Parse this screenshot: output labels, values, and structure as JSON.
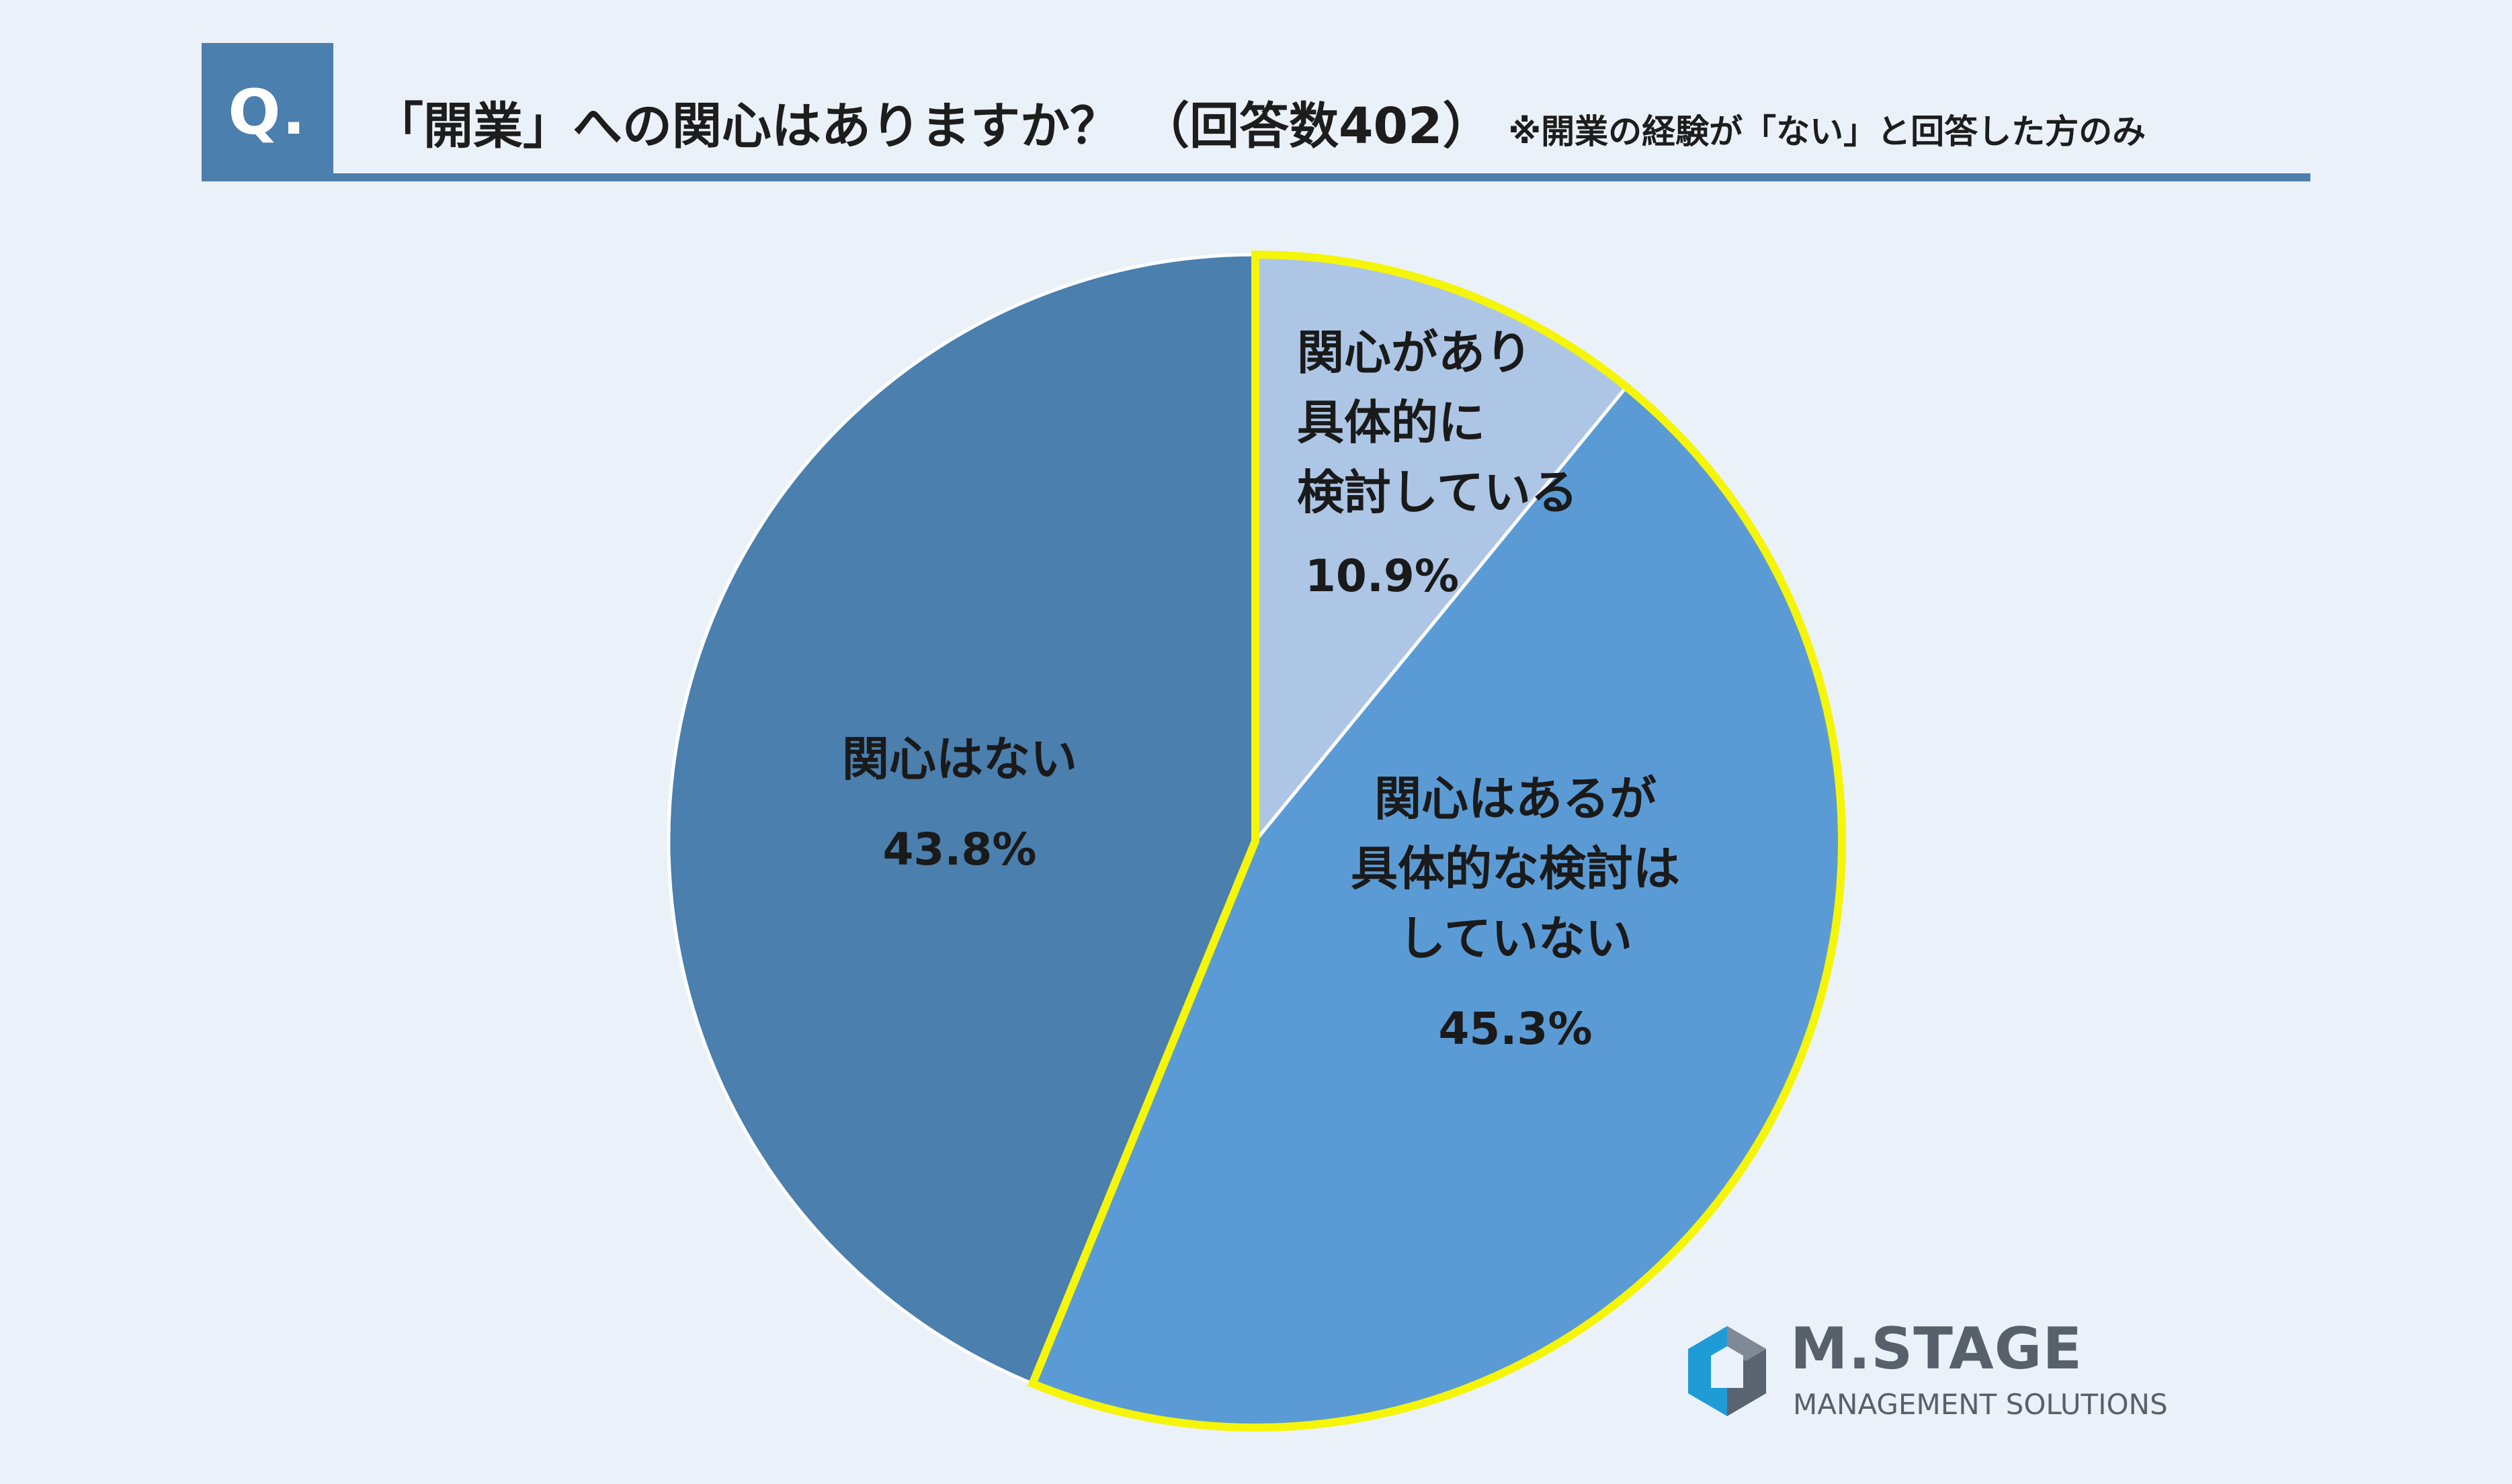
{
  "header": {
    "badge": "Q.",
    "title": "「開業」への関心はありますか？",
    "count": "（回答数402）",
    "note": "※開業の経験が「ない」と回答した方のみ"
  },
  "colors": {
    "background": "#ebf1f9",
    "accent": "#4a7fae",
    "highlight_outline": "#f5f50a",
    "slice_separator": "#ffffff"
  },
  "chart_data": {
    "type": "pie",
    "title": "「開業」への関心はありますか？",
    "start": "12 o'clock, clockwise",
    "slices": [
      {
        "label_lines": [
          "関心があり",
          "具体的に",
          "検討している"
        ],
        "value": 10.9,
        "value_label": "10.9%",
        "color": "#adc6e6",
        "highlighted": true
      },
      {
        "label_lines": [
          "関心はあるが",
          "具体的な検討は",
          "していない"
        ],
        "value": 45.3,
        "value_label": "45.3%",
        "color": "#5b9bd5",
        "highlighted": true
      },
      {
        "label_lines": [
          "関心はない"
        ],
        "value": 43.8,
        "value_label": "43.8%",
        "color": "#4a7fae",
        "highlighted": false
      }
    ]
  },
  "logo": {
    "icon": "m-stage-hexagon-icon",
    "name": "M.STAGE",
    "subtitle": "MANAGEMENT SOLUTIONS"
  }
}
